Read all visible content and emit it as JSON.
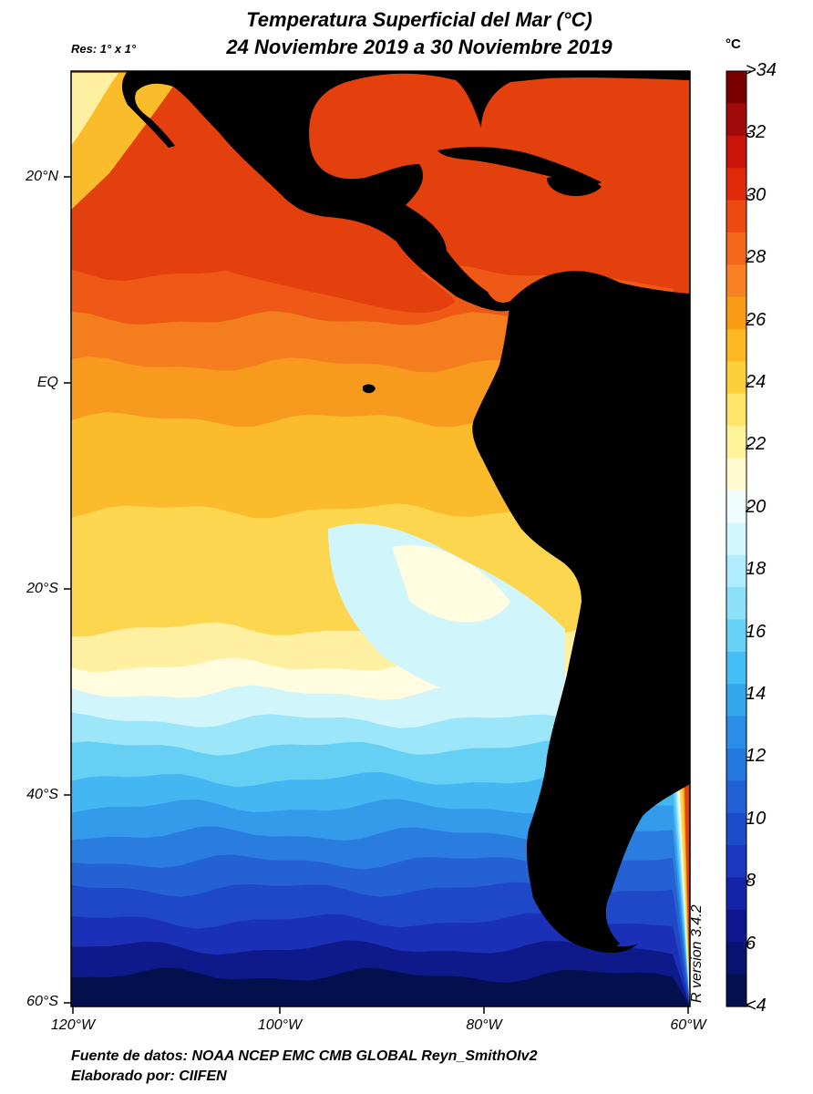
{
  "title": {
    "line1": "Temperatura Superficial del Mar (°C)",
    "line2": "24 Noviembre 2019 a 30 Noviembre 2019"
  },
  "resolution": "Res: 1° x 1°",
  "unit": "°C",
  "colorbar": {
    "labels": [
      ">34",
      "32",
      "30",
      "28",
      "26",
      "24",
      "22",
      "20",
      "18",
      "16",
      "14",
      "12",
      "10",
      "8",
      "6",
      "<4"
    ],
    "colors": [
      "#7a0000",
      "#a00a0a",
      "#c8140a",
      "#e02a0a",
      "#ee4a10",
      "#f4661a",
      "#f88222",
      "#fa9c16",
      "#fbb820",
      "#fccf3c",
      "#fde46a",
      "#fef39a",
      "#fffbd0",
      "#f0fdff",
      "#d4f6ff",
      "#b0ecfc",
      "#8ce0f8",
      "#66d2f6",
      "#44bef4",
      "#34a6ee",
      "#2a8ee6",
      "#2478de",
      "#2062d6",
      "#1c4ccc",
      "#1a38c0",
      "#1424aa",
      "#0e1690",
      "#081270",
      "#04104e"
    ]
  },
  "axes": {
    "lat_labels": [
      "20°N",
      "EQ",
      "20°S",
      "40°S",
      "60°S"
    ],
    "lon_labels": [
      "120°W",
      "100°W",
      "80°W",
      "60°W"
    ]
  },
  "map_colors": {
    "land": "#000000",
    "ocean_bands": [
      "#04104e",
      "#0e1a8a",
      "#1a30b6",
      "#1e48c8",
      "#2462d4",
      "#2a7cde",
      "#349aea",
      "#44b6f2",
      "#66d0f4",
      "#9ce6fa",
      "#d0f6fc",
      "#fffce0",
      "#fef0a0",
      "#fdd650",
      "#fbbc2c",
      "#f89a1e",
      "#f47e1e",
      "#ee5a16",
      "#e4400e"
    ]
  },
  "footer": {
    "line1": "Fuente de datos: NOAA NCEP EMC CMB GLOBAL Reyn_SmithOIv2",
    "line2": "Elaborado por: CIIFEN"
  },
  "watermark": "R version 3.4.2"
}
